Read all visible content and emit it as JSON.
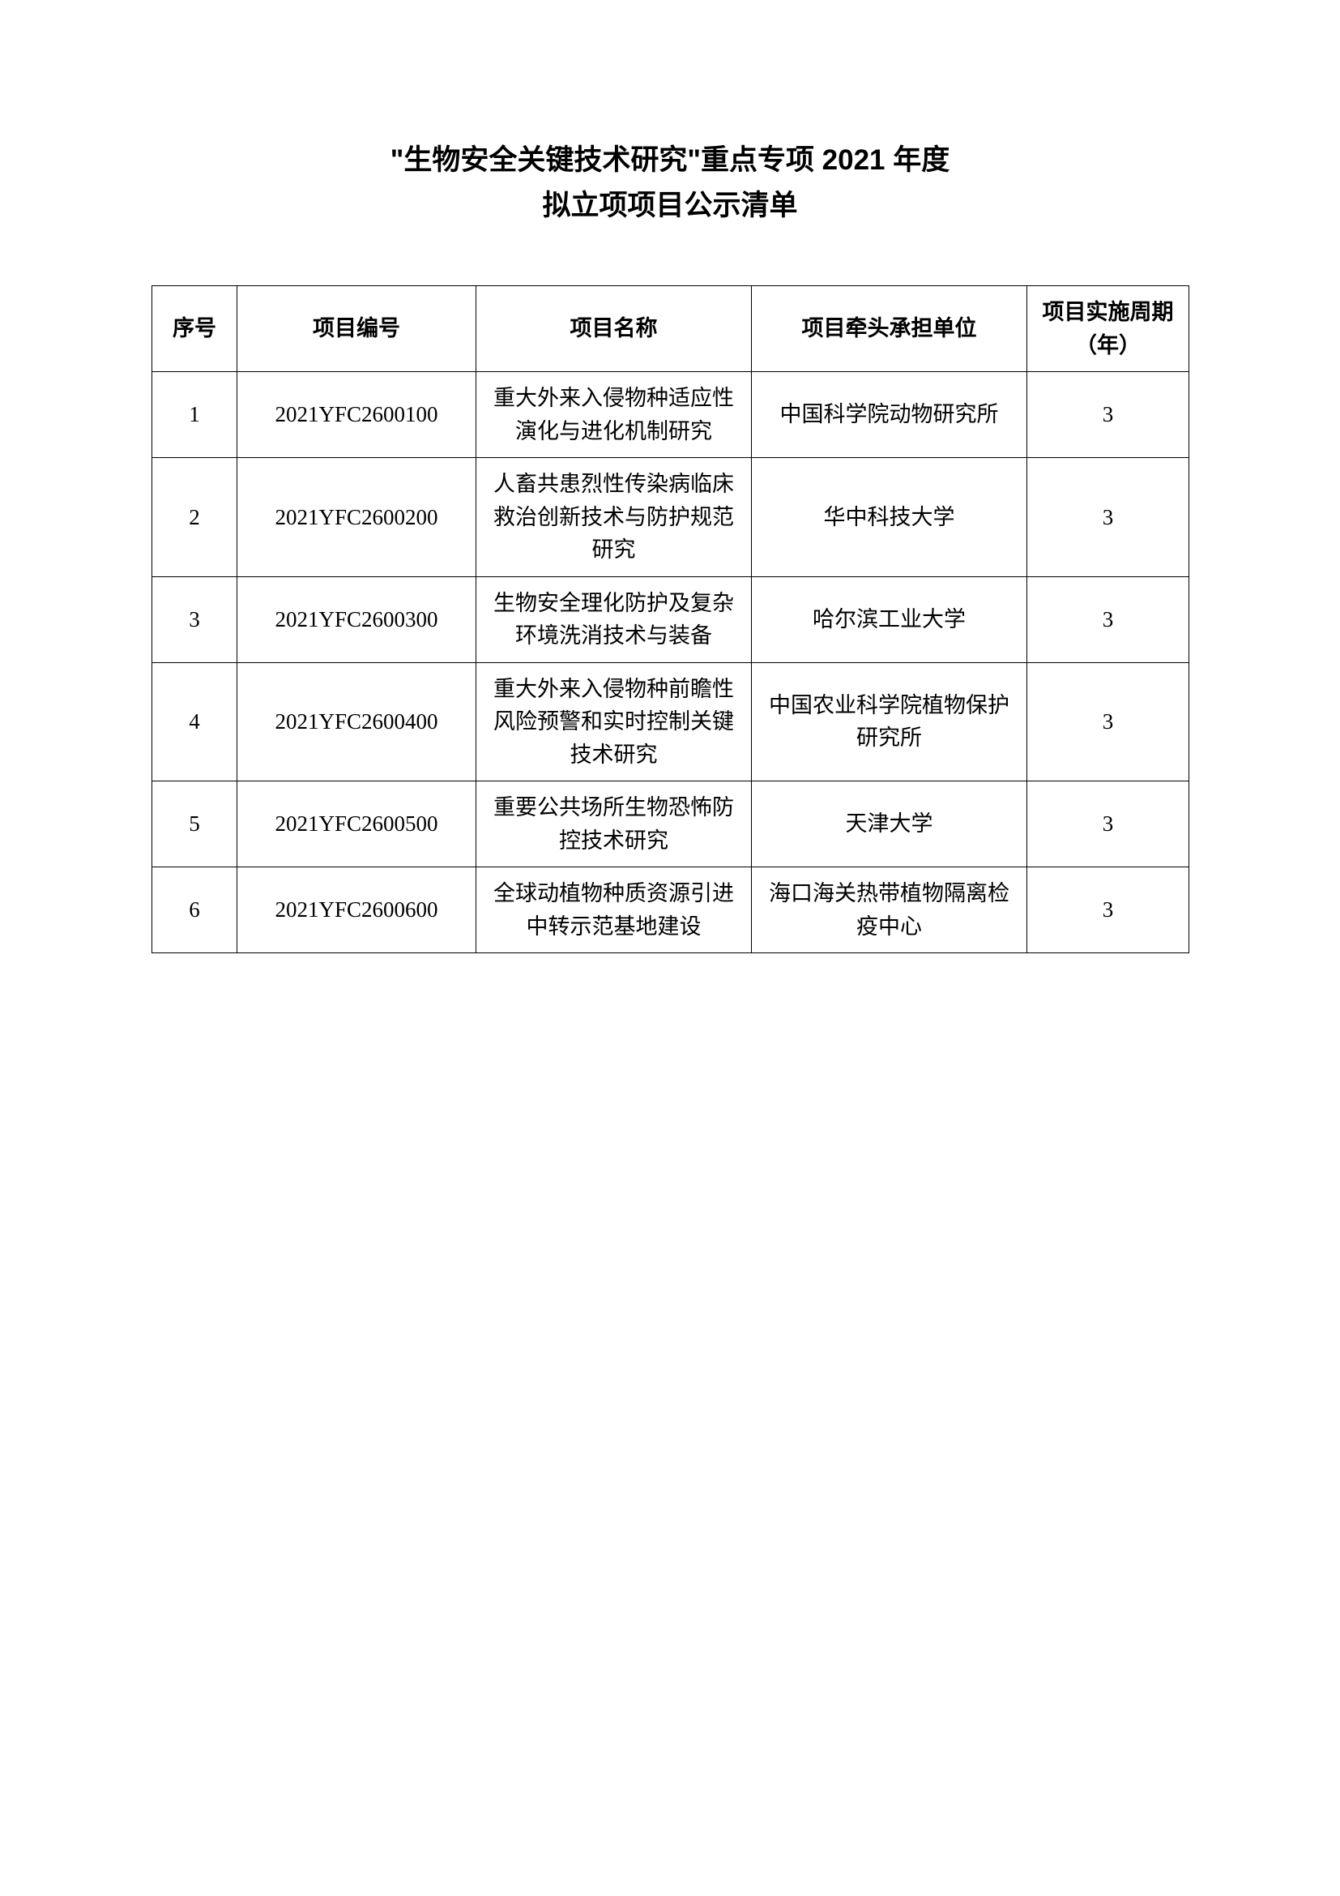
{
  "title": {
    "line1": "\"生物安全关键技术研究\"重点专项 2021 年度",
    "line2": "拟立项项目公示清单"
  },
  "table": {
    "headers": {
      "seq": "序号",
      "code": "项目编号",
      "name": "项目名称",
      "unit": "项目牵头承担单位",
      "period": "项目实施周期（年）"
    },
    "rows": [
      {
        "seq": "1",
        "code": "2021YFC2600100",
        "name": "重大外来入侵物种适应性演化与进化机制研究",
        "unit": "中国科学院动物研究所",
        "period": "3"
      },
      {
        "seq": "2",
        "code": "2021YFC2600200",
        "name": "人畜共患烈性传染病临床救治创新技术与防护规范研究",
        "unit": "华中科技大学",
        "period": "3"
      },
      {
        "seq": "3",
        "code": "2021YFC2600300",
        "name": "生物安全理化防护及复杂环境洗消技术与装备",
        "unit": "哈尔滨工业大学",
        "period": "3"
      },
      {
        "seq": "4",
        "code": "2021YFC2600400",
        "name": "重大外来入侵物种前瞻性风险预警和实时控制关键技术研究",
        "unit": "中国农业科学院植物保护研究所",
        "period": "3"
      },
      {
        "seq": "5",
        "code": "2021YFC2600500",
        "name": "重要公共场所生物恐怖防控技术研究",
        "unit": "天津大学",
        "period": "3"
      },
      {
        "seq": "6",
        "code": "2021YFC2600600",
        "name": "全球动植物种质资源引进中转示范基地建设",
        "unit": "海口海关热带植物隔离检疫中心",
        "period": "3"
      }
    ]
  }
}
